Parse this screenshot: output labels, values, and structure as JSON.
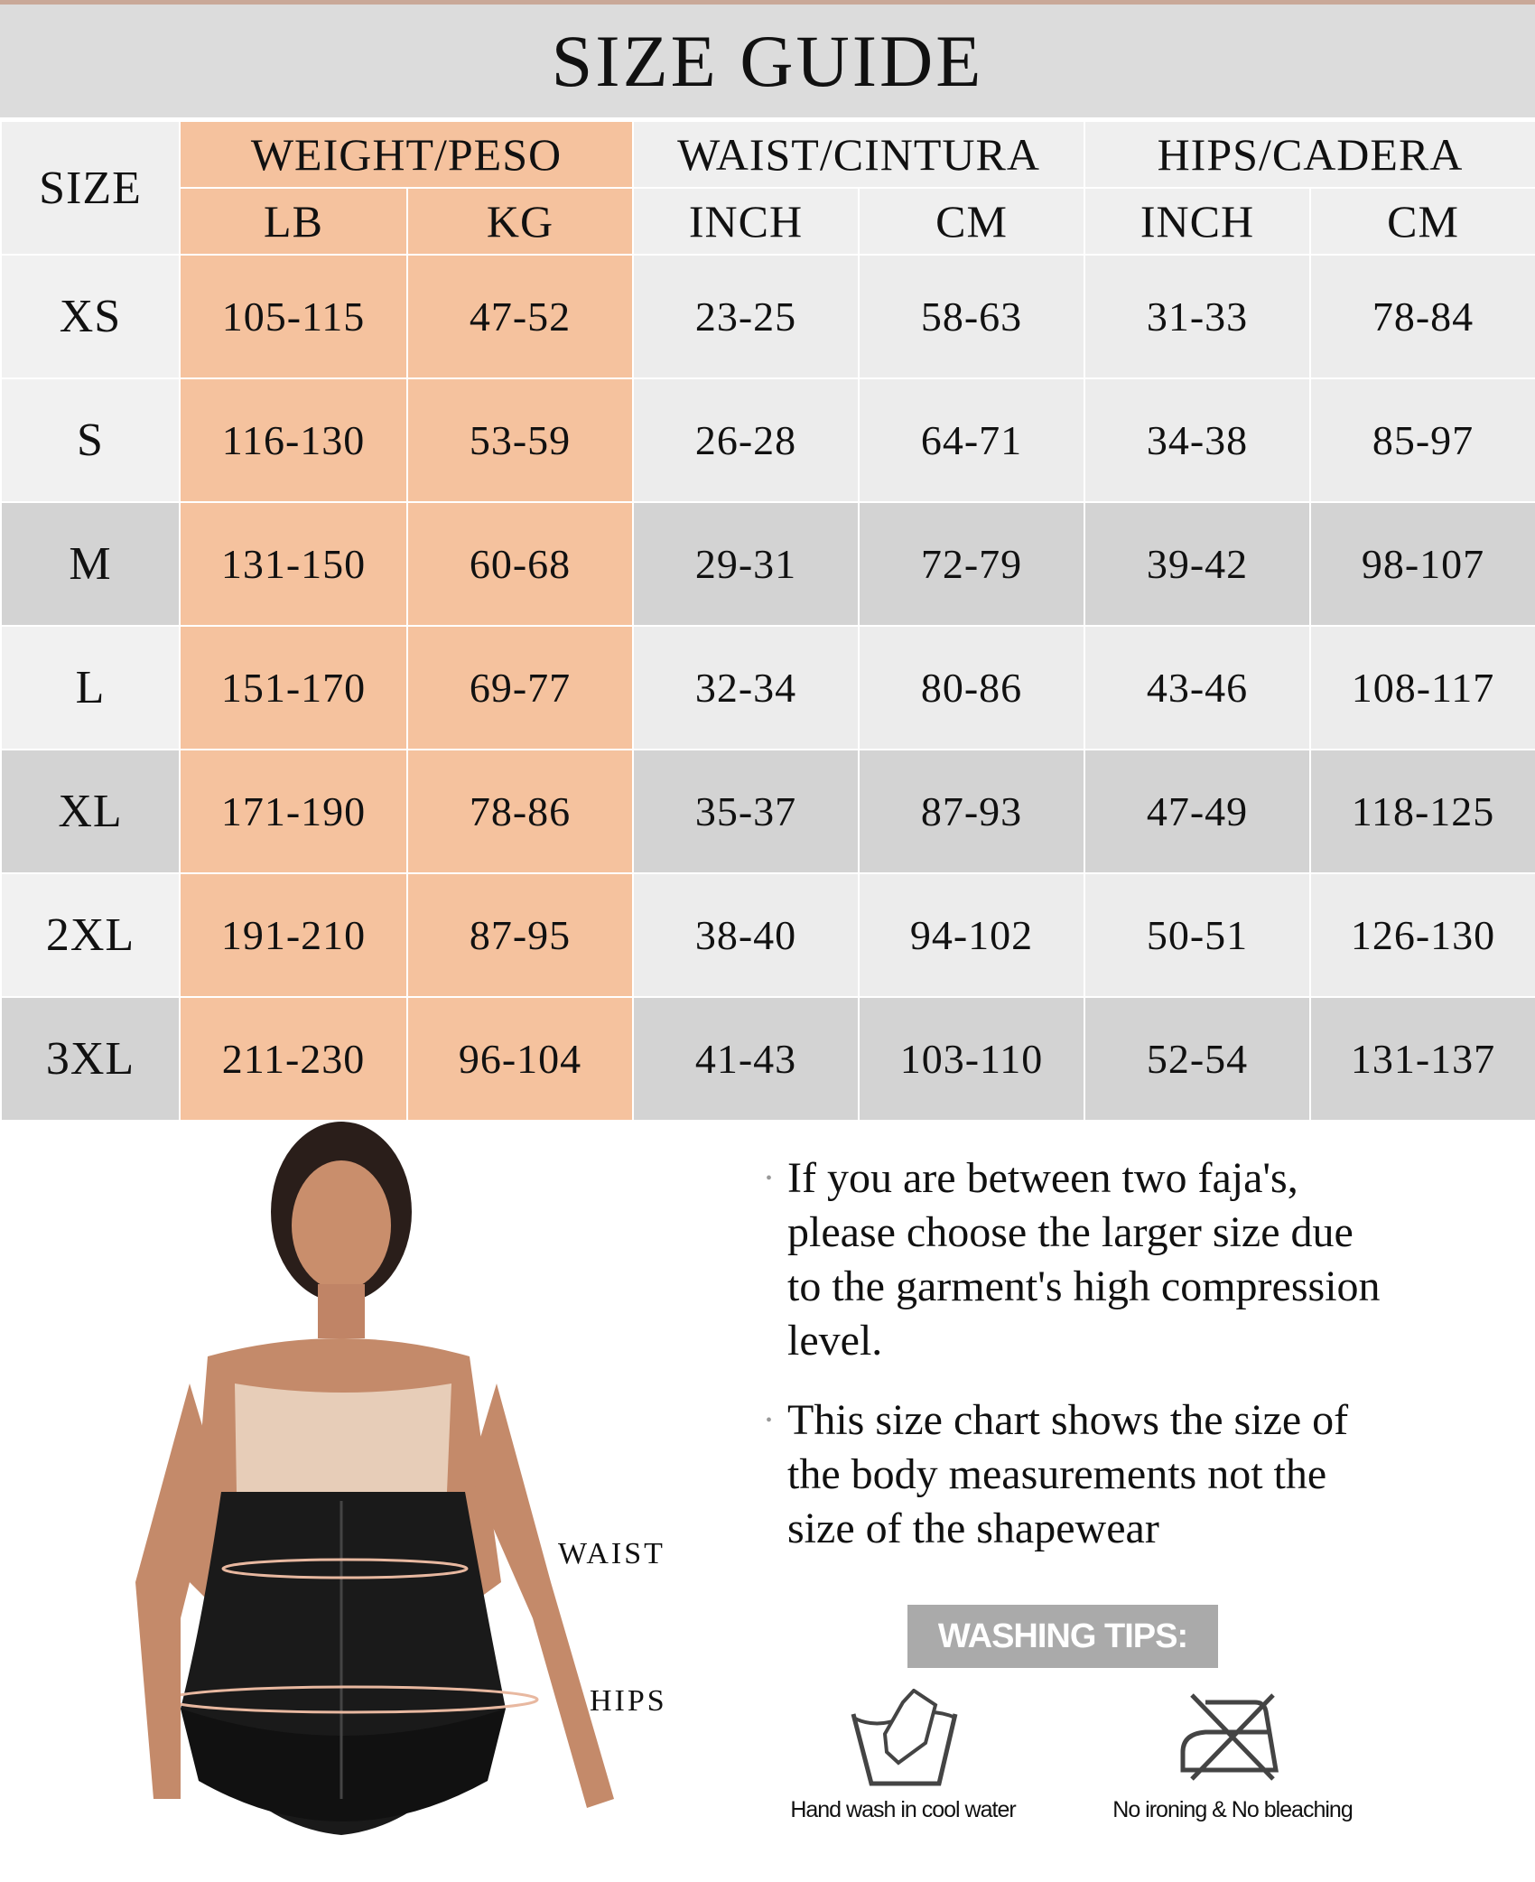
{
  "title": "SIZE GUIDE",
  "table": {
    "size_header": "SIZE",
    "groups": [
      "WEIGHT/PESO",
      "WAIST/CINTURA",
      "HIPS/CADERA"
    ],
    "subheaders": [
      "LB",
      "KG",
      "INCH",
      "CM",
      "INCH",
      "CM"
    ],
    "rows": [
      {
        "size": "XS",
        "values": [
          "105-115",
          "47-52",
          "23-25",
          "58-63",
          "31-33",
          "78-84"
        ]
      },
      {
        "size": "S",
        "values": [
          "116-130",
          "53-59",
          "26-28",
          "64-71",
          "34-38",
          "85-97"
        ]
      },
      {
        "size": "M",
        "values": [
          "131-150",
          "60-68",
          "29-31",
          "72-79",
          "39-42",
          "98-107"
        ]
      },
      {
        "size": "L",
        "values": [
          "151-170",
          "69-77",
          "32-34",
          "80-86",
          "43-46",
          "108-117"
        ]
      },
      {
        "size": "XL",
        "values": [
          "171-190",
          "78-86",
          "35-37",
          "87-93",
          "47-49",
          "118-125"
        ]
      },
      {
        "size": "2XL",
        "values": [
          "191-210",
          "87-95",
          "38-40",
          "94-102",
          "50-51",
          "126-130"
        ]
      },
      {
        "size": "3XL",
        "values": [
          "211-230",
          "96-104",
          "41-43",
          "103-110",
          "52-54",
          "131-137"
        ]
      }
    ]
  },
  "photo_labels": {
    "waist": "WAIST",
    "hips": "HIPS"
  },
  "notes": [
    "If you are between two faja's, please choose the larger size due to the garment's high compression level.",
    "This size chart shows the size of the body  measurements not the size of the shapewear"
  ],
  "washing": {
    "title": "WASHING TIPS:",
    "tips": [
      {
        "icon": "hand-wash-icon",
        "label": "Hand wash in cool water"
      },
      {
        "icon": "no-ironing-icon",
        "label": "No ironing & No bleaching"
      }
    ]
  },
  "colors": {
    "peach": "#f5c29e",
    "dark_row": "#d3d3d3",
    "light_row": "#ececec",
    "header_band": "#dcdcdc"
  }
}
